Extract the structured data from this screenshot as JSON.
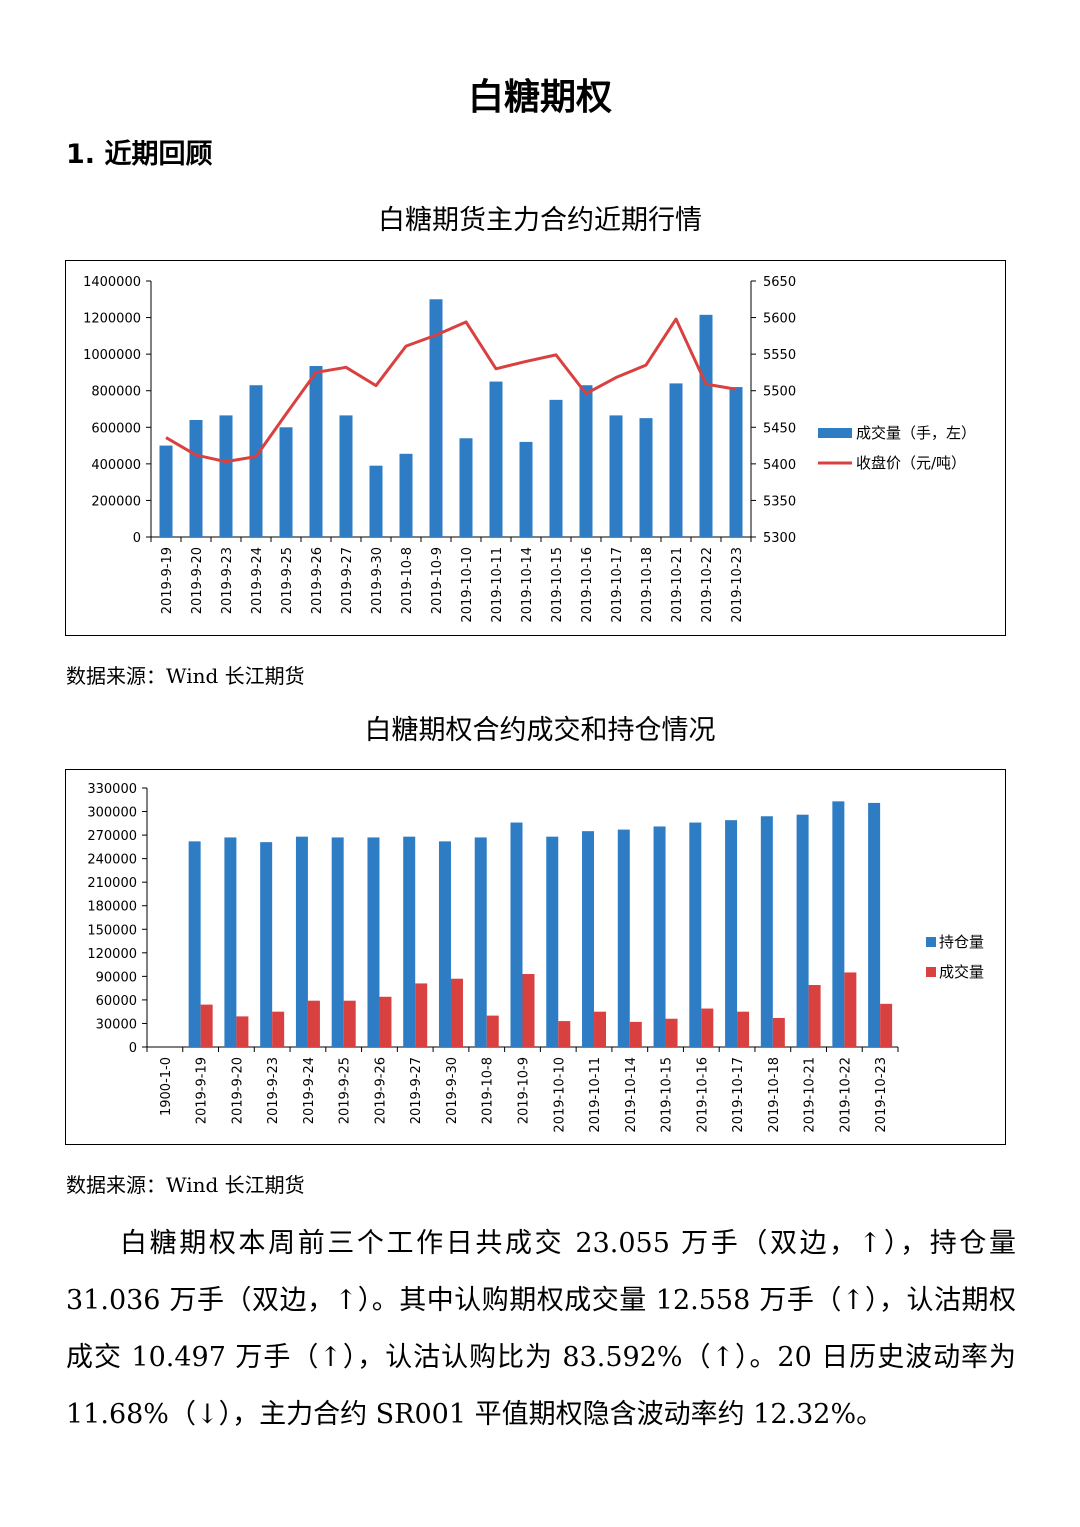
{
  "page_title": "白糖期权",
  "section_heading": "1. 近期回顾",
  "chart_data": [
    {
      "type": "bar",
      "title": "白糖期货主力合约近期行情",
      "categories": [
        "2019-9-19",
        "2019-9-20",
        "2019-9-23",
        "2019-9-24",
        "2019-9-25",
        "2019-9-26",
        "2019-9-27",
        "2019-9-30",
        "2019-10-8",
        "2019-10-9",
        "2019-10-10",
        "2019-10-11",
        "2019-10-14",
        "2019-10-15",
        "2019-10-16",
        "2019-10-17",
        "2019-10-18",
        "2019-10-21",
        "2019-10-22",
        "2019-10-23"
      ],
      "series": [
        {
          "name": "成交量（手，左）",
          "type": "bar",
          "axis": "left",
          "color": "#2e7dc4",
          "values": [
            500000,
            640000,
            665000,
            830000,
            600000,
            935000,
            665000,
            390000,
            455000,
            1300000,
            540000,
            850000,
            520000,
            750000,
            830000,
            665000,
            650000,
            840000,
            1215000,
            820000
          ]
        },
        {
          "name": "收盘价（元/吨）",
          "type": "line",
          "axis": "right",
          "color": "#d94040",
          "values": [
            5436,
            5412,
            5403,
            5410,
            5468,
            5525,
            5532,
            5507,
            5561,
            5576,
            5594,
            5530,
            5540,
            5549,
            5496,
            5518,
            5535,
            5598,
            5509,
            5502
          ]
        }
      ],
      "ylim_left": [
        0,
        1400000
      ],
      "yticks_left": [
        "0",
        "200000",
        "400000",
        "600000",
        "800000",
        "1000000",
        "1200000",
        "1400000"
      ],
      "ylim_right": [
        5300,
        5650
      ],
      "yticks_right": [
        "5300",
        "5350",
        "5400",
        "5450",
        "5500",
        "5550",
        "5600",
        "5650"
      ],
      "legend_position": "right"
    },
    {
      "type": "bar",
      "title": "白糖期权合约成交和持仓情况",
      "categories": [
        "1900-1-0",
        "2019-9-19",
        "2019-9-20",
        "2019-9-23",
        "2019-9-24",
        "2019-9-25",
        "2019-9-26",
        "2019-9-27",
        "2019-9-30",
        "2019-10-8",
        "2019-10-9",
        "2019-10-10",
        "2019-10-11",
        "2019-10-14",
        "2019-10-15",
        "2019-10-16",
        "2019-10-17",
        "2019-10-18",
        "2019-10-21",
        "2019-10-22",
        "2019-10-23"
      ],
      "series": [
        {
          "name": "持仓量",
          "color": "#2e7dc4",
          "values": [
            0,
            262000,
            267000,
            261000,
            268000,
            267000,
            267000,
            268000,
            262000,
            267000,
            286000,
            268000,
            275000,
            277000,
            281000,
            286000,
            289000,
            294000,
            296000,
            313000,
            311000
          ]
        },
        {
          "name": "成交量",
          "color": "#d94040",
          "values": [
            0,
            54000,
            39000,
            45000,
            59000,
            59000,
            64000,
            81000,
            87000,
            40000,
            93000,
            33000,
            45000,
            32000,
            36000,
            49000,
            45000,
            37000,
            79000,
            95000,
            55000
          ]
        }
      ],
      "ylim": [
        0,
        330000
      ],
      "yticks": [
        "0",
        "30000",
        "60000",
        "90000",
        "120000",
        "150000",
        "180000",
        "210000",
        "240000",
        "270000",
        "300000",
        "330000"
      ],
      "legend_position": "right"
    }
  ],
  "source_1": "数据来源：Wind  长江期货",
  "source_2": "数据来源：Wind  长江期货",
  "body_paragraph": "白糖期权本周前三个工作日共成交 23.055 万手（双边，↑），持仓量 31.036 万手（双边，↑）。其中认购期权成交量 12.558 万手（↑），认沽期权成交 10.497 万手（↑），认沽认购比为 83.592%（↑）。20 日历史波动率为 11.68%（↓），主力合约 SR001 平值期权隐含波动率约 12.32%。"
}
